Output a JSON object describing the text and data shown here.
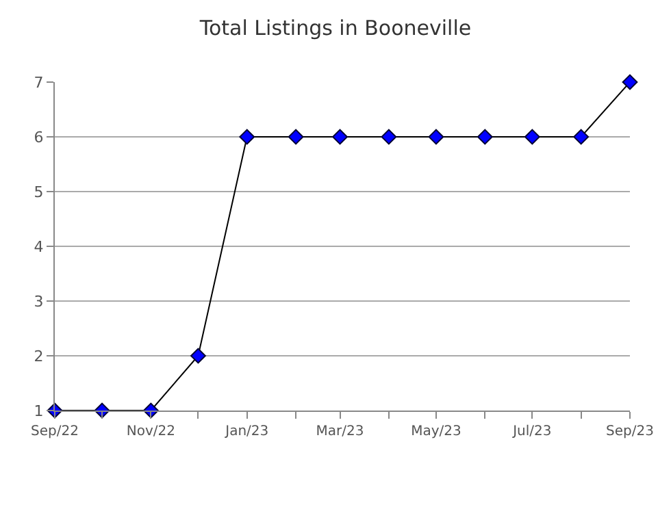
{
  "chart_data": {
    "type": "line",
    "title": "Total Listings in Booneville",
    "x": [
      "2022-09",
      "2022-10",
      "2022-11",
      "2022-12",
      "2023-01",
      "2023-02",
      "2023-03",
      "2023-04",
      "2023-05",
      "2023-06",
      "2023-07",
      "2023-08",
      "2023-09"
    ],
    "series": [
      {
        "color": "#0000ff",
        "values": [
          1,
          1,
          1,
          2,
          6,
          6,
          6,
          6,
          6,
          6,
          6,
          6,
          7
        ]
      }
    ],
    "xlim": [
      "2022-09",
      "2023-09"
    ],
    "xticks": [
      {
        "value": "2022-09",
        "label": "Sep/22"
      },
      {
        "value": "2022-10",
        "label": null
      },
      {
        "value": "2022-11",
        "label": "Nov/22"
      },
      {
        "value": "2022-12",
        "label": null
      },
      {
        "value": "2023-01",
        "label": "Jan/23"
      },
      {
        "value": "2023-02",
        "label": null
      },
      {
        "value": "2023-03",
        "label": "Mar/23"
      },
      {
        "value": "2023-04",
        "label": null
      },
      {
        "value": "2023-05",
        "label": "May/23"
      },
      {
        "value": "2023-06",
        "label": null
      },
      {
        "value": "2023-07",
        "label": "Jul/23"
      },
      {
        "value": "2023-08",
        "label": null
      },
      {
        "value": "2023-09",
        "label": "Sep/23"
      }
    ],
    "ylim": [
      1,
      7
    ],
    "yticks": [
      1,
      2,
      3,
      4,
      5,
      6,
      7
    ],
    "grid": "y",
    "marker": "diamond",
    "line_style": "solid"
  }
}
